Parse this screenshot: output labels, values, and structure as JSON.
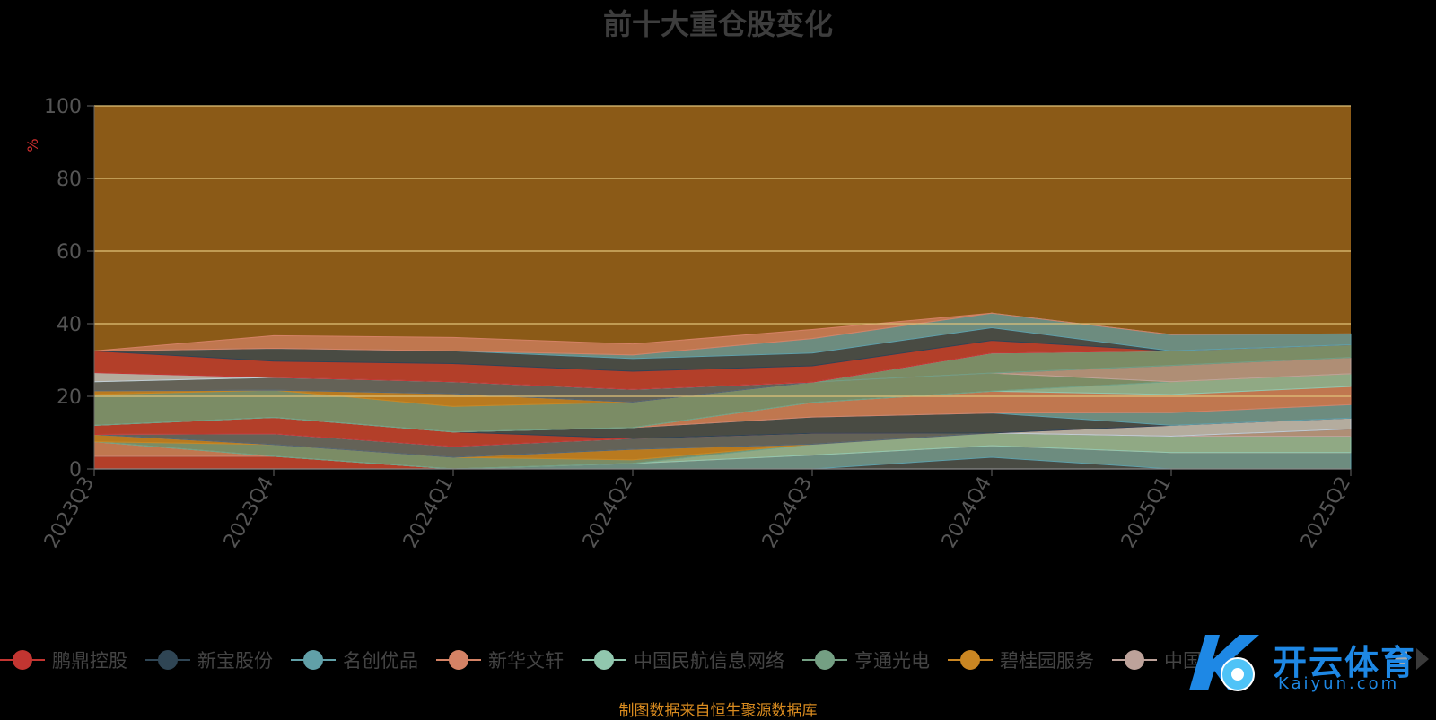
{
  "chart_data": {
    "type": "area",
    "title": "前十大重仓股变化",
    "ylabel": "%",
    "ylim": [
      0,
      100
    ],
    "yticks": [
      0,
      20,
      40,
      60,
      80,
      100
    ],
    "categories": [
      "2023Q3",
      "2023Q4",
      "2024Q1",
      "2024Q2",
      "2024Q3",
      "2024Q4",
      "2025Q1",
      "2025Q2"
    ],
    "plot_background": "#8b5a17",
    "gridline_color": "#e0c27a",
    "series": [
      {
        "name": "鹏鼎控股",
        "color": "#c23531",
        "values": [
          3.5,
          3.5,
          0,
          0,
          0,
          0,
          0,
          0
        ]
      },
      {
        "name": "新宝股份",
        "color": "#2f4554",
        "values": [
          0,
          0,
          0,
          0,
          0,
          3.2,
          0,
          0
        ]
      },
      {
        "name": "名创优品",
        "color": "#61a0a8",
        "values": [
          0,
          0,
          0,
          1.5,
          3.8,
          3.2,
          4.5,
          4.5
        ]
      },
      {
        "name": "新华文轩",
        "color": "#d48265",
        "values": [
          4,
          0,
          0,
          0,
          0,
          0,
          0,
          0
        ]
      },
      {
        "name": "中国民航信息网络",
        "color": "#91c7ae",
        "values": [
          0,
          0,
          0,
          0,
          3,
          3.5,
          4.5,
          4.5
        ]
      },
      {
        "name": "亨通光电",
        "color": "#749f83",
        "values": [
          0,
          3.2,
          3.2,
          1,
          0,
          0,
          0,
          0
        ]
      },
      {
        "name": "碧桂园服务",
        "color": "#ca8622",
        "values": [
          2,
          0,
          0,
          2.9,
          0,
          0,
          0,
          0
        ]
      },
      {
        "name": "中国中铁",
        "color": "#bda29a",
        "values": [
          0,
          0,
          0,
          0,
          0,
          0,
          0,
          2
        ]
      },
      {
        "name": "",
        "color": "#546570",
        "values": [
          0,
          3,
          3,
          3,
          3,
          0,
          0,
          0
        ]
      },
      {
        "name": "",
        "color": "#c4ccd3",
        "values": [
          0,
          0,
          0,
          0,
          0,
          0,
          3,
          3
        ]
      },
      {
        "name": "",
        "color": "#c23531",
        "values": [
          2.5,
          4.5,
          4,
          0,
          0,
          0,
          0,
          0
        ]
      },
      {
        "name": "",
        "color": "#2f4554",
        "values": [
          0,
          0,
          0,
          3,
          4.5,
          5.5,
          0,
          0
        ]
      },
      {
        "name": "",
        "color": "#61a0a8",
        "values": [
          0,
          0,
          0,
          0,
          0,
          0,
          3.5,
          3.7
        ]
      },
      {
        "name": "",
        "color": "#d48265",
        "values": [
          0,
          0,
          0,
          0,
          4,
          6,
          5,
          5
        ]
      },
      {
        "name": "",
        "color": "#91c7ae",
        "values": [
          0,
          0,
          0,
          0,
          0,
          0,
          3.5,
          3.5
        ]
      },
      {
        "name": "",
        "color": "#749f83",
        "values": [
          8.5,
          7.5,
          7,
          7,
          5.6,
          5,
          0,
          0
        ]
      },
      {
        "name": "",
        "color": "#ca8622",
        "values": [
          1,
          0,
          3.5,
          0,
          0,
          0,
          0,
          0
        ]
      },
      {
        "name": "",
        "color": "#bda29a",
        "values": [
          0,
          0,
          0,
          0,
          0,
          0,
          4.5,
          4.5
        ]
      },
      {
        "name": "",
        "color": "#546570",
        "values": [
          2.5,
          3.5,
          3.3,
          3.5,
          0,
          0,
          0,
          0
        ]
      },
      {
        "name": "",
        "color": "#749f83",
        "values": [
          0,
          0,
          0,
          0,
          0,
          5.5,
          4,
          3.5
        ]
      },
      {
        "name": "",
        "color": "#c4ccd3",
        "values": [
          2.5,
          0,
          0,
          0,
          0,
          0,
          0,
          0
        ]
      },
      {
        "name": "",
        "color": "#c23531",
        "values": [
          6,
          4.5,
          5,
          5,
          4.5,
          3.5,
          0,
          0
        ]
      },
      {
        "name": "",
        "color": "#2f4554",
        "values": [
          0,
          3.5,
          3.5,
          3.5,
          3.5,
          3.5,
          0,
          0
        ]
      },
      {
        "name": "",
        "color": "#61a0a8",
        "values": [
          0,
          0,
          0,
          1,
          4,
          4,
          4.5,
          3
        ]
      },
      {
        "name": "",
        "color": "#d48265",
        "values": [
          0,
          3.5,
          3.7,
          3,
          2.5,
          0,
          0,
          0
        ]
      }
    ]
  },
  "legend": {
    "items": [
      {
        "label": "鹏鼎控股",
        "color": "#c23531"
      },
      {
        "label": "新宝股份",
        "color": "#2f4554"
      },
      {
        "label": "名创优品",
        "color": "#61a0a8"
      },
      {
        "label": "新华文轩",
        "color": "#d48265"
      },
      {
        "label": "中国民航信息网络",
        "color": "#91c7ae"
      },
      {
        "label": "亨通光电",
        "color": "#749f83"
      },
      {
        "label": "碧桂园服务",
        "color": "#ca8622"
      },
      {
        "label": "中国中铁",
        "color": "#bda29a"
      }
    ]
  },
  "footer": {
    "source": "制图数据来自恒生聚源数据库"
  },
  "watermark": {
    "text": "开云体育",
    "sub": "Kaiyun.com"
  }
}
